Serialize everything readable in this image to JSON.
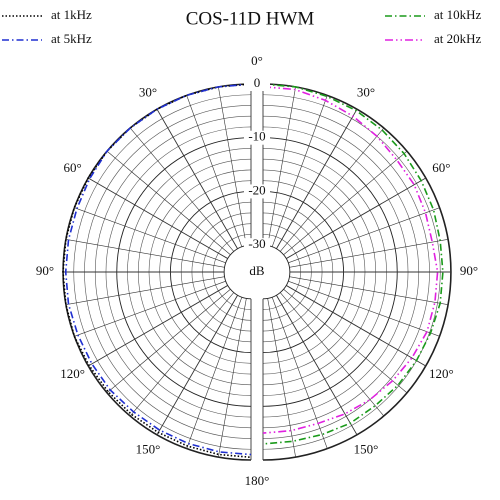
{
  "chart_data": {
    "type": "polar-half",
    "title": "COS-11D HWM",
    "x": [
      0,
      10,
      20,
      30,
      40,
      50,
      60,
      70,
      80,
      90,
      100,
      110,
      120,
      130,
      140,
      150,
      160,
      170,
      180
    ],
    "series": [
      {
        "name": "at 1kHz",
        "color": "#000000",
        "dash": "dotted",
        "side": "left",
        "values": [
          0,
          0,
          0,
          0,
          0,
          0,
          0,
          0,
          0,
          0,
          0,
          0,
          -0.2,
          -0.3,
          -0.4,
          -0.5,
          -0.5,
          -0.5,
          -0.5
        ]
      },
      {
        "name": "at 5kHz",
        "color": "#1f2fd0",
        "dash": "dash-dot",
        "side": "left",
        "values": [
          0,
          0,
          0,
          0,
          0,
          0,
          -0.3,
          -0.5,
          -0.5,
          -0.5,
          -0.5,
          -0.7,
          -0.8,
          -0.8,
          -1,
          -1,
          -1,
          -1,
          -1
        ]
      },
      {
        "name": "at 10kHz",
        "color": "#1a9a1a",
        "dash": "dash-dot",
        "side": "right",
        "values": [
          0,
          0,
          -0.2,
          -0.3,
          -0.5,
          -0.7,
          -1,
          -1.2,
          -1.5,
          -1.5,
          -1.5,
          -1.8,
          -2,
          -2.2,
          -2.5,
          -2.5,
          -2.8,
          -3,
          -3
        ]
      },
      {
        "name": "at 20kHz",
        "color": "#e020e0",
        "dash": "dash-dot-dot",
        "side": "right",
        "values": [
          -0.5,
          -0.5,
          -1,
          -1.5,
          -2,
          -2.5,
          -2.5,
          -2.8,
          -3,
          -2.5,
          -2.5,
          -2.5,
          -3,
          -3.5,
          -4,
          -4.5,
          -5,
          -5,
          -5
        ]
      }
    ],
    "rlim": [
      -35,
      0
    ],
    "rticks": [
      0,
      -10,
      -20,
      -30
    ],
    "rminorticks": [
      -2,
      -4,
      -6,
      -8,
      -12,
      -14,
      -16,
      -18,
      -22,
      -24,
      -26,
      -28
    ],
    "r_label": "dB",
    "thetaticks": [
      {
        "value": 0,
        "label": "0°"
      },
      {
        "value": 30,
        "label": "30°"
      },
      {
        "value": 60,
        "label": "60°"
      },
      {
        "value": 90,
        "label": "90°"
      },
      {
        "value": 120,
        "label": "120°"
      },
      {
        "value": 150,
        "label": "150°"
      },
      {
        "value": 180,
        "label": "180°"
      }
    ],
    "thetaminorticks": [
      10,
      20,
      40,
      50,
      70,
      80,
      100,
      110,
      130,
      140,
      160,
      170
    ],
    "grid": true
  }
}
